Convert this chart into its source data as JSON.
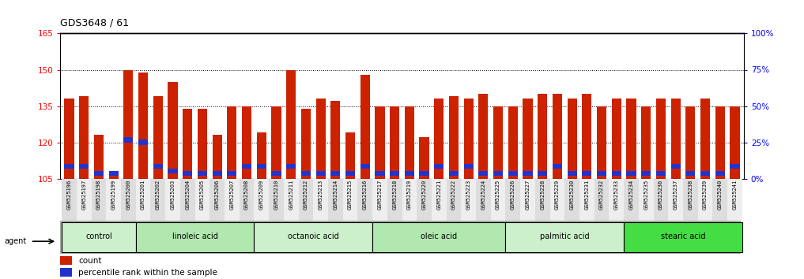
{
  "title": "GDS3648 / 61",
  "ylim_left": [
    105,
    165
  ],
  "ylim_right": [
    0,
    100
  ],
  "yticks_left": [
    105,
    120,
    135,
    150,
    165
  ],
  "yticks_right": [
    0,
    25,
    50,
    75,
    100
  ],
  "ytick_labels_right": [
    "0%",
    "25%",
    "50%",
    "75%",
    "100%"
  ],
  "bar_color": "#CC2200",
  "blue_color": "#2233CC",
  "samples": [
    "GSM525196",
    "GSM525197",
    "GSM525198",
    "GSM525199",
    "GSM525200",
    "GSM525201",
    "GSM525202",
    "GSM525203",
    "GSM525204",
    "GSM525205",
    "GSM525206",
    "GSM525207",
    "GSM525208",
    "GSM525209",
    "GSM525210",
    "GSM525211",
    "GSM525212",
    "GSM525213",
    "GSM525214",
    "GSM525215",
    "GSM525216",
    "GSM525217",
    "GSM525218",
    "GSM525219",
    "GSM525220",
    "GSM525221",
    "GSM525222",
    "GSM525223",
    "GSM525224",
    "GSM525225",
    "GSM525226",
    "GSM525227",
    "GSM525228",
    "GSM525229",
    "GSM525230",
    "GSM525231",
    "GSM525232",
    "GSM525233",
    "GSM525234",
    "GSM525235",
    "GSM525236",
    "GSM525237",
    "GSM525238",
    "GSM525239",
    "GSM525240",
    "GSM525241"
  ],
  "counts": [
    138,
    139,
    123,
    108,
    150,
    149,
    139,
    145,
    134,
    134,
    123,
    135,
    135,
    124,
    135,
    150,
    134,
    138,
    137,
    124,
    148,
    135,
    135,
    135,
    122,
    138,
    139,
    138,
    140,
    135,
    135,
    138,
    140,
    140,
    138,
    140,
    135,
    138,
    138,
    135,
    138,
    138,
    135,
    138,
    135,
    135
  ],
  "blue_bottoms": [
    109,
    109,
    106,
    106,
    120,
    119,
    109,
    107,
    106,
    106,
    106,
    106,
    109,
    109,
    106,
    109,
    106,
    106,
    106,
    106,
    109,
    106,
    106,
    106,
    106,
    109,
    106,
    109,
    106,
    106,
    106,
    106,
    106,
    109,
    106,
    106,
    106,
    106,
    106,
    106,
    106,
    109,
    106,
    106,
    106,
    109
  ],
  "blue_heights": [
    2,
    2,
    2,
    2,
    2,
    2,
    2,
    2,
    2,
    2,
    2,
    2,
    2,
    2,
    2,
    2,
    2,
    2,
    2,
    2,
    2,
    2,
    2,
    2,
    2,
    2,
    2,
    2,
    2,
    2,
    2,
    2,
    2,
    2,
    2,
    2,
    2,
    2,
    2,
    2,
    2,
    2,
    2,
    2,
    2,
    2
  ],
  "groups": [
    {
      "label": "control",
      "start": 0,
      "end": 5,
      "color": "#ccf0cc"
    },
    {
      "label": "linoleic acid",
      "start": 5,
      "end": 13,
      "color": "#b0e8b0"
    },
    {
      "label": "octanoic acid",
      "start": 13,
      "end": 21,
      "color": "#ccf0cc"
    },
    {
      "label": "oleic acid",
      "start": 21,
      "end": 30,
      "color": "#b0e8b0"
    },
    {
      "label": "palmitic acid",
      "start": 30,
      "end": 38,
      "color": "#ccf0cc"
    },
    {
      "label": "stearic acid",
      "start": 38,
      "end": 46,
      "color": "#44dd44"
    }
  ],
  "legend_count_color": "#CC2200",
  "legend_pct_color": "#2233CC",
  "agent_label": "agent"
}
